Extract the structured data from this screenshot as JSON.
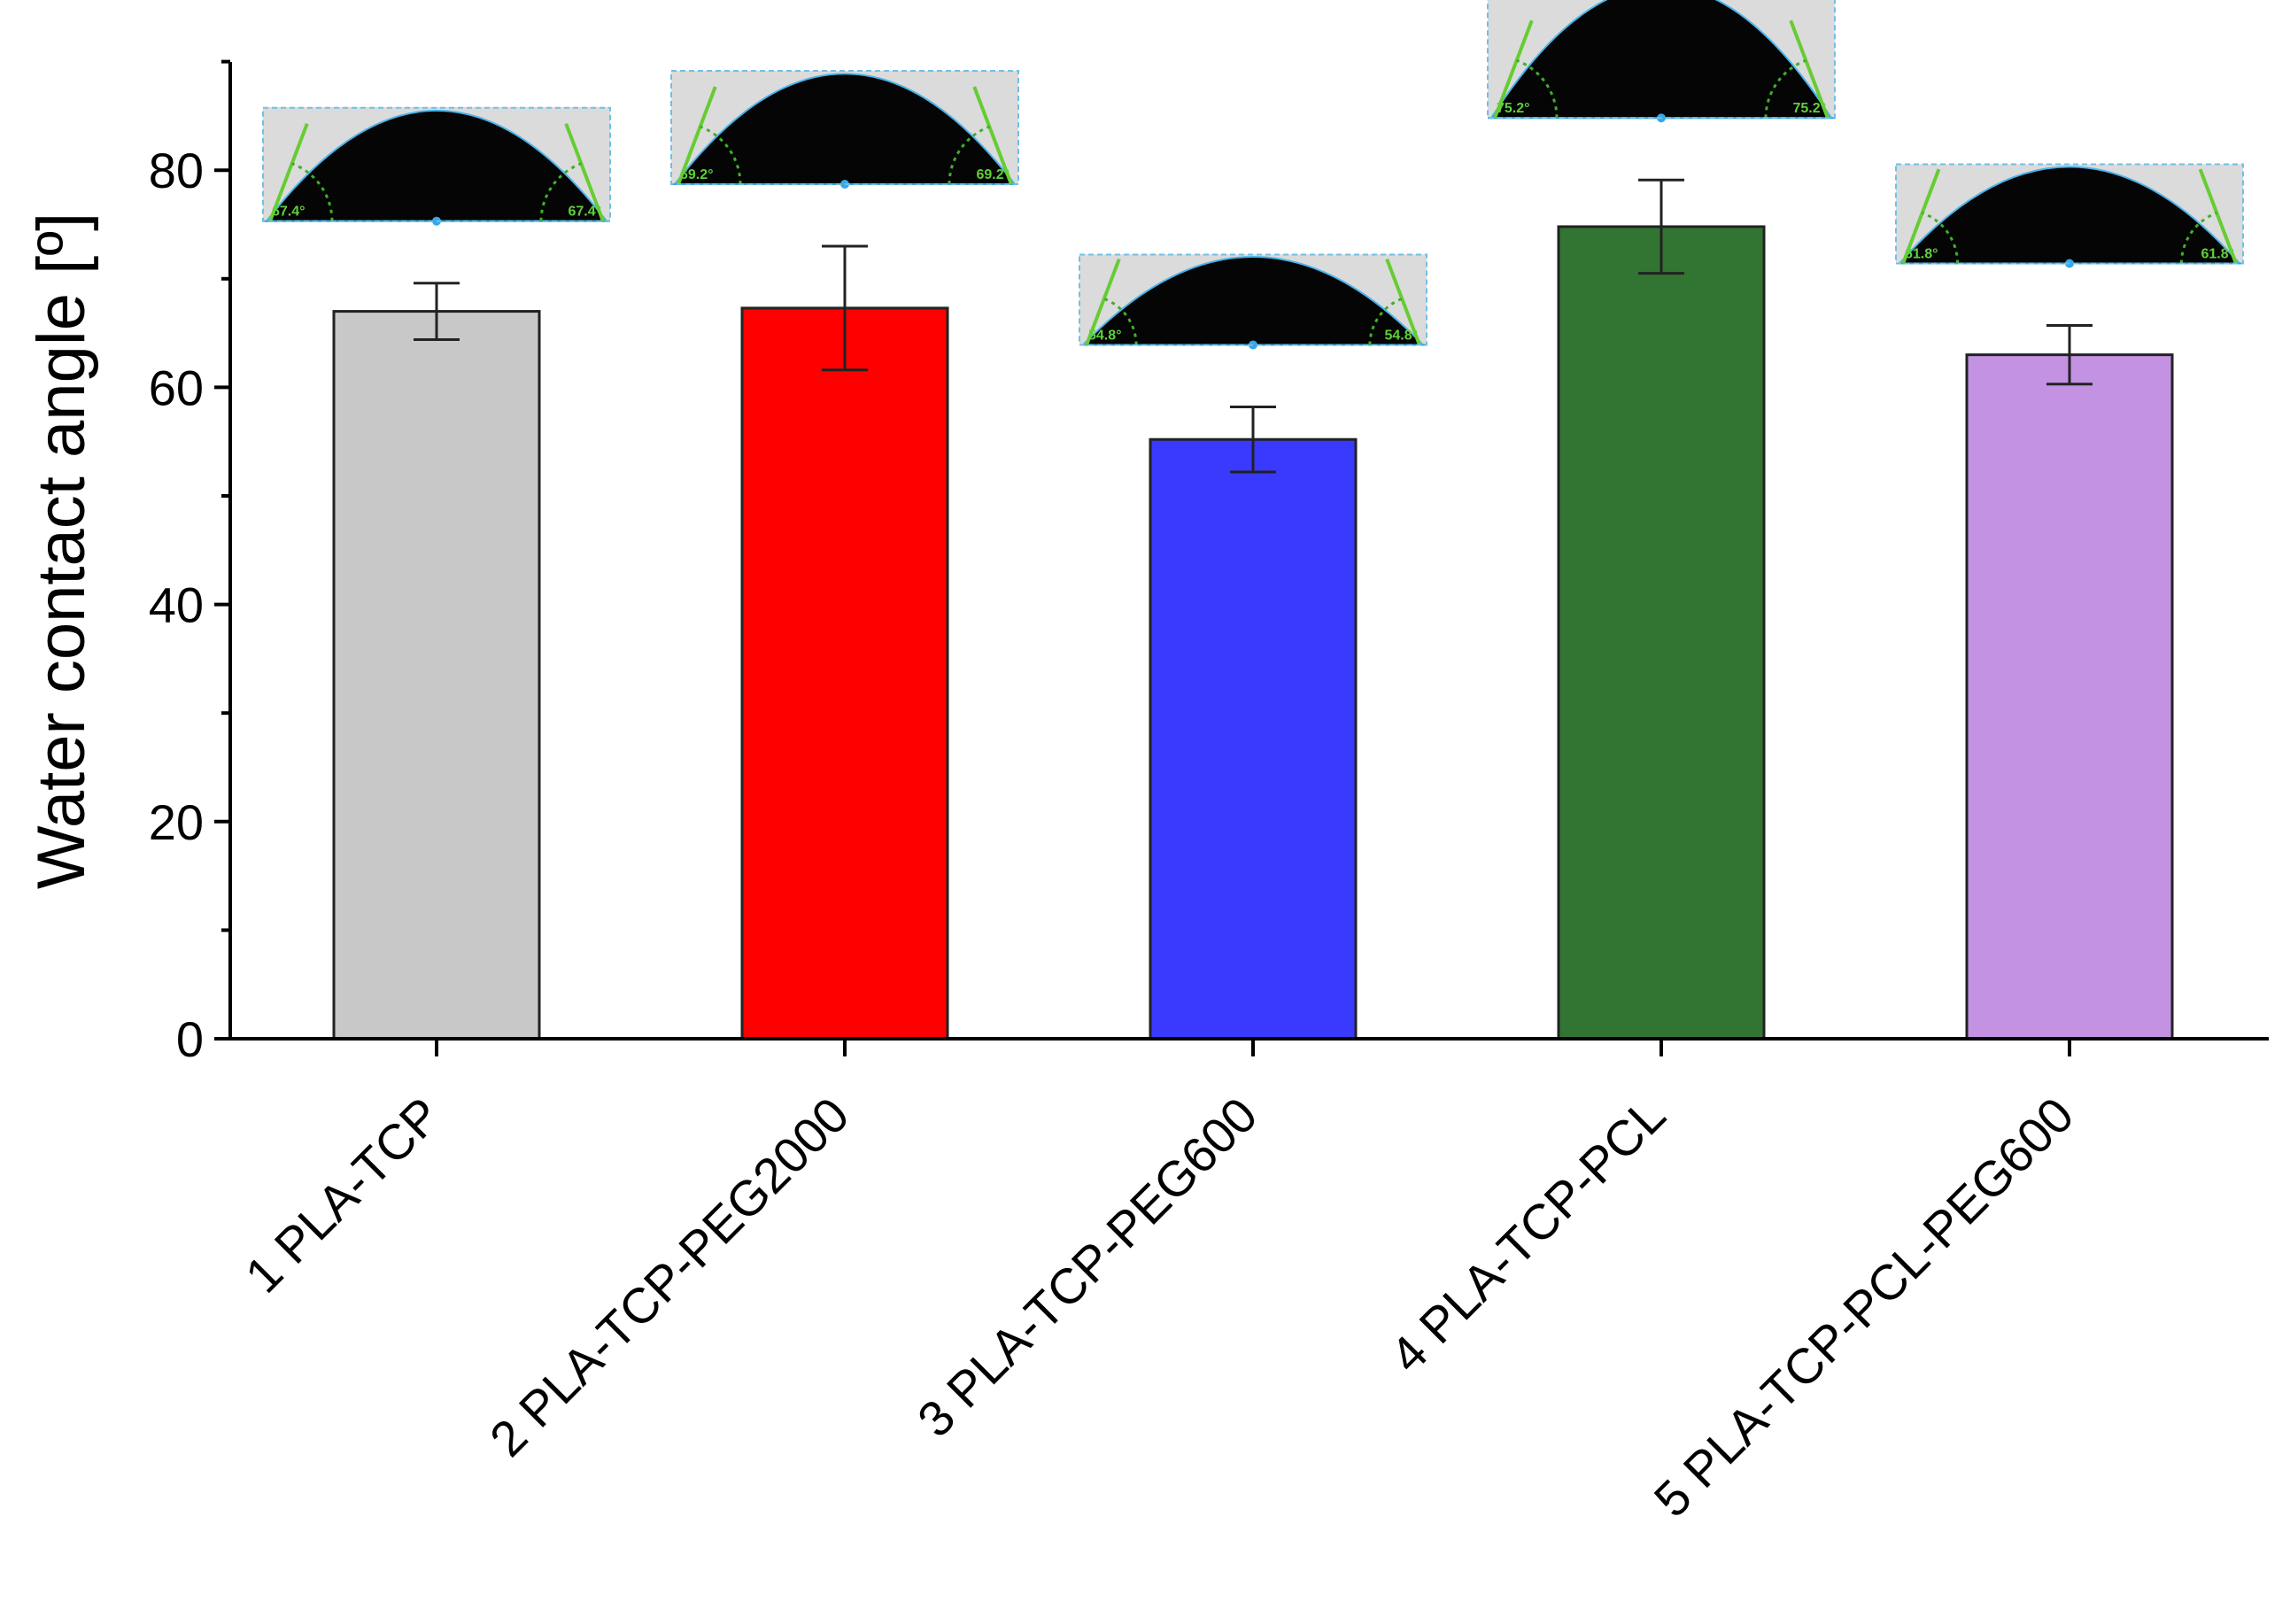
{
  "chart_data": {
    "type": "bar",
    "title": "",
    "xlabel": "",
    "ylabel": "Water contact angle [º]",
    "ylim": [
      0,
      90
    ],
    "yticks": [
      0,
      20,
      40,
      60,
      80
    ],
    "grid": false,
    "categories": [
      "1 PLA-TCP",
      "2 PLA-TCP-PEG2000",
      "3 PLA-TCP-PEG600",
      "4 PLA-TCP-PCL",
      "5 PLA-TCP-PCL-PEG600"
    ],
    "values": [
      67.0,
      67.3,
      55.2,
      74.8,
      63.0
    ],
    "errors": [
      2.6,
      5.7,
      3.0,
      4.3,
      2.7
    ],
    "colors": [
      "#c8c8c8",
      "#ff0000",
      "#3a3aff",
      "#327432",
      "#c392e3"
    ],
    "insets": [
      {
        "angle_label": "67.4°"
      },
      {
        "angle_label": "69.2°"
      },
      {
        "angle_label": "54.8°"
      },
      {
        "angle_label": "75.2°"
      },
      {
        "angle_label": "61.8°"
      }
    ]
  }
}
